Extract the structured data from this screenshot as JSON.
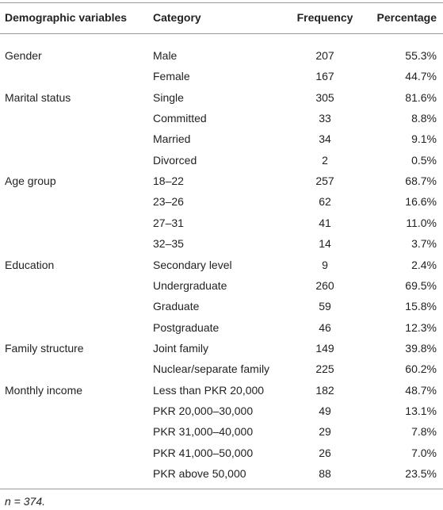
{
  "table": {
    "header": [
      "Demographic variables",
      "Category",
      "Frequency",
      "Percentage"
    ],
    "groups": [
      {
        "name": "Gender",
        "rows": [
          [
            "Male",
            207,
            "55.3%"
          ],
          [
            "Female",
            167,
            "44.7%"
          ]
        ]
      },
      {
        "name": "Marital status",
        "rows": [
          [
            "Single",
            305,
            "81.6%"
          ],
          [
            "Committed",
            33,
            "8.8%"
          ],
          [
            "Married",
            34,
            "9.1%"
          ],
          [
            "Divorced",
            2,
            "0.5%"
          ]
        ]
      },
      {
        "name": "Age group",
        "rows": [
          [
            "18–22",
            257,
            "68.7%"
          ],
          [
            "23–26",
            62,
            "16.6%"
          ],
          [
            "27–31",
            41,
            "11.0%"
          ],
          [
            "32–35",
            14,
            "3.7%"
          ]
        ]
      },
      {
        "name": "Education",
        "rows": [
          [
            "Secondary level",
            9,
            "2.4%"
          ],
          [
            "Undergraduate",
            260,
            "69.5%"
          ],
          [
            "Graduate",
            59,
            "15.8%"
          ],
          [
            "Postgraduate",
            46,
            "12.3%"
          ]
        ]
      },
      {
        "name": "Family structure",
        "rows": [
          [
            "Joint family",
            149,
            "39.8%"
          ],
          [
            "Nuclear/separate family",
            225,
            "60.2%"
          ]
        ]
      },
      {
        "name": "Monthly income",
        "rows": [
          [
            "Less than PKR 20,000",
            182,
            "48.7%"
          ],
          [
            "PKR 20,000–30,000",
            49,
            "13.1%"
          ],
          [
            "PKR 31,000–40,000",
            29,
            "7.8%"
          ],
          [
            "PKR 41,000–50,000",
            26,
            "7.0%"
          ],
          [
            "PKR above 50,000",
            88,
            "23.5%"
          ]
        ]
      }
    ],
    "footnote": "n = 374."
  }
}
